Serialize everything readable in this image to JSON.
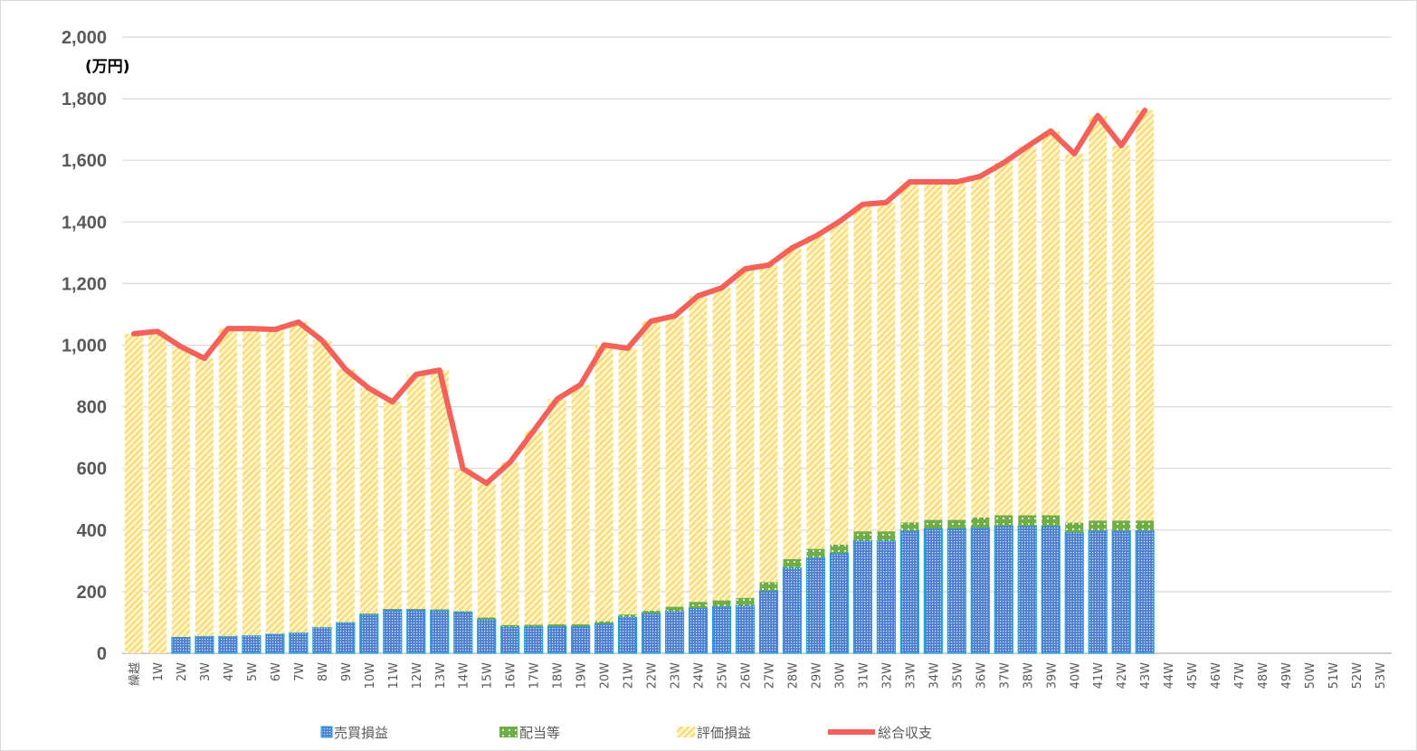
{
  "chart_data": {
    "type": "bar",
    "stacked": true,
    "unit_label": "(万円)",
    "ylim": [
      0,
      2000
    ],
    "yticks": [
      "0",
      "200",
      "400",
      "600",
      "800",
      "1,000",
      "1,200",
      "1,400",
      "1,600",
      "1,800",
      "2,000"
    ],
    "ytick_values": [
      0,
      200,
      400,
      600,
      800,
      1000,
      1200,
      1400,
      1600,
      1800,
      2000
    ],
    "grid": true,
    "legend_position": "bottom",
    "categories": [
      "繰越",
      "1W",
      "2W",
      "3W",
      "4W",
      "5W",
      "6W",
      "7W",
      "8W",
      "9W",
      "10W",
      "11W",
      "12W",
      "13W",
      "14W",
      "15W",
      "16W",
      "17W",
      "18W",
      "19W",
      "20W",
      "21W",
      "22W",
      "23W",
      "24W",
      "25W",
      "26W",
      "27W",
      "28W",
      "29W",
      "30W",
      "31W",
      "32W",
      "33W",
      "34W",
      "35W",
      "36W",
      "37W",
      "38W",
      "39W",
      "40W",
      "41W",
      "42W",
      "43W",
      "44W",
      "45W",
      "46W",
      "47W",
      "48W",
      "49W",
      "50W",
      "51W",
      "52W",
      "53W"
    ],
    "series": [
      {
        "name": "売買損益",
        "type": "bar",
        "color": "#5b8fd6",
        "values": [
          0,
          0,
          53,
          56,
          56,
          58,
          63,
          67,
          84,
          100,
          127,
          142,
          142,
          140,
          134,
          110,
          86,
          87,
          88,
          88,
          96,
          118,
          130,
          137,
          147,
          152,
          155,
          203,
          278,
          311,
          325,
          366,
          366,
          398,
          405,
          405,
          408,
          413,
          413,
          413,
          392,
          398,
          398,
          398,
          null,
          null,
          null,
          null,
          null,
          null,
          null,
          null,
          null,
          null
        ]
      },
      {
        "name": "配当等",
        "type": "bar",
        "color": "#70ad47",
        "values": [
          0,
          0,
          0,
          0,
          0,
          0,
          0,
          0,
          1,
          1,
          2,
          2,
          2,
          3,
          3,
          6,
          6,
          6,
          6,
          6,
          8,
          8,
          8,
          14,
          20,
          20,
          25,
          28,
          28,
          28,
          28,
          30,
          30,
          27,
          28,
          28,
          33,
          35,
          35,
          35,
          32,
          33,
          33,
          33,
          null,
          null,
          null,
          null,
          null,
          null,
          null,
          null,
          null,
          null
        ]
      },
      {
        "name": "評価損益",
        "type": "bar",
        "color": "#ffd966",
        "values": [
          1037,
          1045,
          942,
          901,
          998,
          996,
          988,
          1008,
          931,
          821,
          731,
          672,
          761,
          776,
          462,
          436,
          528,
          629,
          731,
          778,
          897,
          864,
          940,
          944,
          993,
          1014,
          1068,
          1029,
          1010,
          1015,
          1048,
          1061,
          1067,
          1105,
          1097,
          1097,
          1107,
          1144,
          1197,
          1247,
          1197,
          1314,
          1217,
          1331,
          null,
          null,
          null,
          null,
          null,
          null,
          null,
          null,
          null,
          null
        ]
      },
      {
        "name": "総合収支",
        "type": "line",
        "color": "#f4605a",
        "values": [
          1037,
          1045,
          995,
          957,
          1054,
          1054,
          1051,
          1075,
          1016,
          922,
          860,
          816,
          905,
          919,
          599,
          552,
          620,
          722,
          825,
          872,
          1001,
          990,
          1078,
          1095,
          1160,
          1186,
          1248,
          1260,
          1316,
          1354,
          1401,
          1457,
          1463,
          1530,
          1530,
          1530,
          1548,
          1592,
          1645,
          1695,
          1621,
          1745,
          1648,
          1762,
          null,
          null,
          null,
          null,
          null,
          null,
          null,
          null,
          null,
          null
        ]
      }
    ]
  }
}
